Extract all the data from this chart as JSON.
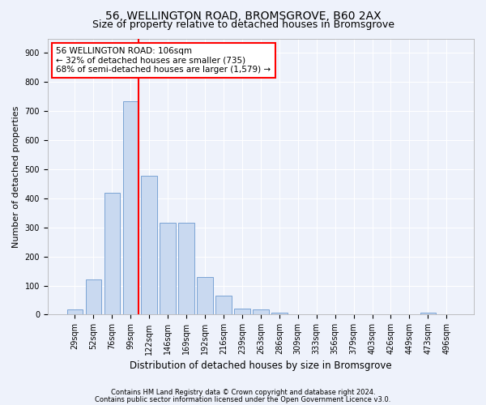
{
  "title1": "56, WELLINGTON ROAD, BROMSGROVE, B60 2AX",
  "title2": "Size of property relative to detached houses in Bromsgrove",
  "xlabel": "Distribution of detached houses by size in Bromsgrove",
  "ylabel": "Number of detached properties",
  "categories": [
    "29sqm",
    "52sqm",
    "76sqm",
    "99sqm",
    "122sqm",
    "146sqm",
    "169sqm",
    "192sqm",
    "216sqm",
    "239sqm",
    "263sqm",
    "286sqm",
    "309sqm",
    "333sqm",
    "356sqm",
    "379sqm",
    "403sqm",
    "426sqm",
    "449sqm",
    "473sqm",
    "496sqm"
  ],
  "values": [
    18,
    122,
    418,
    735,
    478,
    316,
    316,
    130,
    65,
    22,
    18,
    8,
    2,
    0,
    0,
    0,
    0,
    0,
    0,
    8,
    0
  ],
  "bar_color": "#c9d9f0",
  "bar_edge_color": "#7ba3d4",
  "red_line_index": 3,
  "annotation_text": "56 WELLINGTON ROAD: 106sqm\n← 32% of detached houses are smaller (735)\n68% of semi-detached houses are larger (1,579) →",
  "annotation_box_color": "white",
  "annotation_box_edge": "red",
  "ylim": [
    0,
    950
  ],
  "yticks": [
    0,
    100,
    200,
    300,
    400,
    500,
    600,
    700,
    800,
    900
  ],
  "footer1": "Contains HM Land Registry data © Crown copyright and database right 2024.",
  "footer2": "Contains public sector information licensed under the Open Government Licence v3.0.",
  "bg_color": "#eef2fb",
  "grid_color": "white",
  "title1_fontsize": 10,
  "title2_fontsize": 9,
  "annot_fontsize": 7.5,
  "axis_fontsize": 7,
  "ylabel_fontsize": 8,
  "xlabel_fontsize": 8.5,
  "footer_fontsize": 6
}
